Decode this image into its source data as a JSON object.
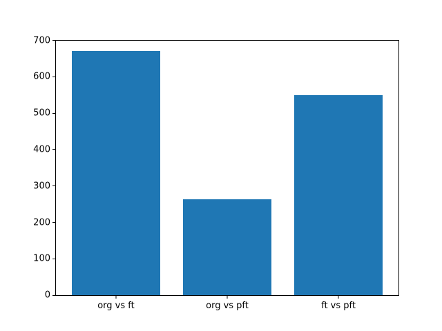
{
  "figure": {
    "background": "#ffffff",
    "spine_color": "#000000",
    "tick_color": "#000000"
  },
  "chart_data": {
    "type": "bar",
    "categories": [
      "org vs ft",
      "org vs pft",
      "ft vs pft"
    ],
    "values": [
      670,
      264,
      550
    ],
    "title": "",
    "xlabel": "",
    "ylabel": "",
    "ylim": [
      0,
      700
    ],
    "yticks": [
      0,
      100,
      200,
      300,
      400,
      500,
      600,
      700
    ],
    "bar_color": "#1f77b4",
    "bar_width_fraction": 0.8,
    "grid": false,
    "legend": null
  }
}
